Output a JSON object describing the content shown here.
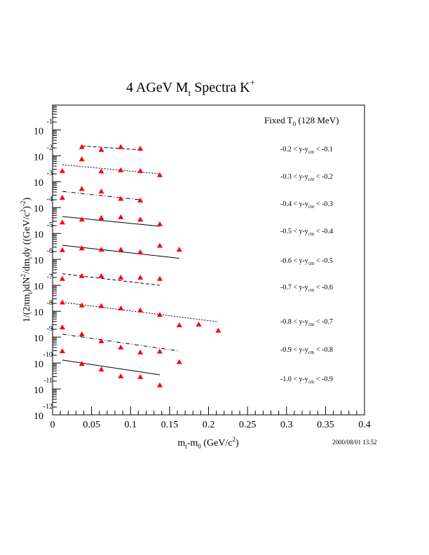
{
  "chart_data": {
    "type": "scatter",
    "title": "4 AGeV M",
    "title_sub": "t",
    "title_rest": " Spectra K",
    "title_sup": "+",
    "xlabel": "m_t-m_0 (GeV/c^2)",
    "xlabel_parts": {
      "m1": "m",
      "sub1": "t",
      "mid": "-m",
      "sub2": "0",
      "unit": " (GeV/c",
      "sup": "2",
      "close": ")"
    },
    "ylabel": "1/(2πm_t)dN^2/dm_t dy ((GeV/c^2)^-2)",
    "ylabel_parts": {
      "a": "1/(2πm",
      "sub1": "t",
      "b": ")dN",
      "sup1": "2",
      "c": "/dm",
      "sub2": "t",
      "d": "dy ((GeV/c",
      "sup2": "2",
      "e": ")",
      "sup3": "-2",
      "f": ")"
    },
    "xlim": [
      0,
      0.4
    ],
    "ylim": [
      1e-12,
      0.9
    ],
    "yscale": "log",
    "x_ticks": [
      "0",
      "0.05",
      "0.1",
      "0.15",
      "0.2",
      "0.25",
      "0.3",
      "0.35",
      "0.4"
    ],
    "x_tick_values": [
      0,
      0.05,
      0.1,
      0.15,
      0.2,
      0.25,
      0.3,
      0.35,
      0.4
    ],
    "y_ticks": [
      {
        "base": "10",
        "exp": "-1"
      },
      {
        "base": "10",
        "exp": "-2"
      },
      {
        "base": "10",
        "exp": "-3"
      },
      {
        "base": "10",
        "exp": "-4"
      },
      {
        "base": "10",
        "exp": "-5"
      },
      {
        "base": "10",
        "exp": "-6"
      },
      {
        "base": "10",
        "exp": "-7"
      },
      {
        "base": "10",
        "exp": "-8"
      },
      {
        "base": "10",
        "exp": "-9"
      },
      {
        "base": "10",
        "exp": "-10"
      },
      {
        "base": "10",
        "exp": "-11"
      },
      {
        "base": "10",
        "exp": "-12"
      }
    ],
    "y_tick_values": [
      0.1,
      0.01,
      0.001,
      0.0001,
      1e-05,
      1e-06,
      1e-07,
      1e-08,
      1e-09,
      1e-10,
      1e-11,
      1e-12
    ],
    "marker_color": "#ff0000",
    "annotation": {
      "text": "Fixed T",
      "sub": "0",
      "rest": " (128 MeV)"
    },
    "timestamp": "2000/08/01   13.52",
    "series": [
      {
        "name": "-0.2 < y-y_cm < -0.1",
        "label_a": "-0.2 < y-y",
        "label_sub": "cm",
        "label_b": " < -0.1",
        "style": "dashed",
        "x": [
          0.0375,
          0.0625,
          0.0875,
          0.1125
        ],
        "y": [
          0.022,
          0.017,
          0.022,
          0.019
        ],
        "fit": {
          "x": [
            0.0375,
            0.075,
            0.1125
          ],
          "y": [
            0.024,
            0.02,
            0.017
          ]
        }
      },
      {
        "name": "-0.3 < y-y_cm < -0.2",
        "label_a": "-0.3 < y-y",
        "label_sub": "cm",
        "label_b": " < -0.2",
        "style": "dotted",
        "x": [
          0.0125,
          0.0375,
          0.0625,
          0.0875,
          0.1125,
          0.1375
        ],
        "y": [
          0.0026,
          0.0074,
          0.0025,
          0.0028,
          0.0026,
          0.0018
        ],
        "fit": {
          "x": [
            0.0125,
            0.1375
          ],
          "y": [
            0.0045,
            0.002
          ]
        }
      },
      {
        "name": "-0.4 < y-y_cm < -0.3",
        "label_a": "-0.4 < y-y",
        "label_sub": "cm",
        "label_b": " < -0.3",
        "style": "dashdot",
        "x": [
          0.0125,
          0.0375,
          0.0625,
          0.0875,
          0.1125
        ],
        "y": [
          0.00024,
          0.00053,
          0.00042,
          0.00022,
          0.00019
        ],
        "fit": {
          "x": [
            0.0125,
            0.1125
          ],
          "y": [
            0.00042,
            0.0002
          ]
        }
      },
      {
        "name": "-0.5 < y-y_cm < -0.4",
        "label_a": "-0.5 < y-y",
        "label_sub": "cm",
        "label_b": " < -0.4",
        "style": "solid",
        "x": [
          0.0125,
          0.0375,
          0.0625,
          0.0875,
          0.1125,
          0.1375
        ],
        "y": [
          2.7e-05,
          3.5e-05,
          4e-05,
          4.3e-05,
          3.5e-05,
          2.3e-05
        ],
        "fit": {
          "x": [
            0.0125,
            0.1375
          ],
          "y": [
            4.5e-05,
            1.9e-05
          ]
        }
      },
      {
        "name": "-0.6 < y-y_cm < -0.5",
        "label_a": "-0.6 < y-y",
        "label_sub": "cm",
        "label_b": " < -0.5",
        "style": "solid",
        "x": [
          0.0125,
          0.0375,
          0.0625,
          0.0875,
          0.1125,
          0.1375,
          0.1625
        ],
        "y": [
          2.3e-06,
          2.7e-06,
          2.4e-06,
          2.4e-06,
          1.9e-06,
          3.4e-06,
          2.4e-06
        ],
        "fit": {
          "x": [
            0.0125,
            0.1625
          ],
          "y": [
            3.5e-06,
            1.1e-06
          ]
        }
      },
      {
        "name": "-0.7 < y-y_cm < -0.6",
        "label_a": "-0.7 < y-y",
        "label_sub": "cm",
        "label_b": " < -0.6",
        "style": "dashed",
        "x": [
          0.0125,
          0.0375,
          0.0625,
          0.0875,
          0.1125,
          0.1375
        ],
        "y": [
          1.8e-07,
          2.3e-07,
          2.3e-07,
          2e-07,
          2e-07,
          1.8e-07
        ],
        "fit": {
          "x": [
            0.0125,
            0.1375
          ],
          "y": [
            2.8e-07,
            1e-07
          ]
        }
      },
      {
        "name": "-0.8 < y-y_cm < -0.7",
        "label_a": "-0.8 < y-y",
        "label_sub": "cm",
        "label_b": " < -0.7",
        "style": "dotted",
        "x": [
          0.0125,
          0.0375,
          0.0625,
          0.0875,
          0.1125,
          0.1375,
          0.1625,
          0.1875,
          0.2125
        ],
        "y": [
          2.2e-08,
          1.7e-08,
          1.6e-08,
          1.3e-08,
          1.1e-08,
          7.3e-09,
          2.9e-09,
          3.1e-09,
          1.8e-09
        ],
        "fit": {
          "x": [
            0.0125,
            0.2125
          ],
          "y": [
            2.2e-08,
            3.9e-09
          ]
        }
      },
      {
        "name": "-0.9 < y-y_cm < -0.8",
        "label_a": "-0.9 < y-y",
        "label_sub": "cm",
        "label_b": " < -0.8",
        "style": "dashdot",
        "x": [
          0.0125,
          0.0375,
          0.0625,
          0.0875,
          0.1125,
          0.1375,
          0.1625
        ],
        "y": [
          2.4e-09,
          1.3e-09,
          7e-10,
          4e-10,
          2.6e-10,
          2.8e-10,
          1.1e-10
        ],
        "fit": {
          "x": [
            0.0125,
            0.1625
          ],
          "y": [
            1.3e-09,
            2.9e-10
          ]
        }
      },
      {
        "name": "-1.0 < y-y_cm < -0.9",
        "label_a": "-1.0 < y-y",
        "label_sub": "cm",
        "label_b": " < -0.9",
        "style": "solid",
        "x": [
          0.0125,
          0.0375,
          0.0625,
          0.0875,
          0.1125,
          0.1375
        ],
        "y": [
          2.9e-10,
          9.4e-11,
          5.7e-11,
          3.1e-11,
          2.9e-11,
          1.4e-11
        ],
        "fit": {
          "x": [
            0.0125,
            0.1375
          ],
          "y": [
            1.3e-10,
            3.5e-11
          ]
        }
      }
    ]
  }
}
